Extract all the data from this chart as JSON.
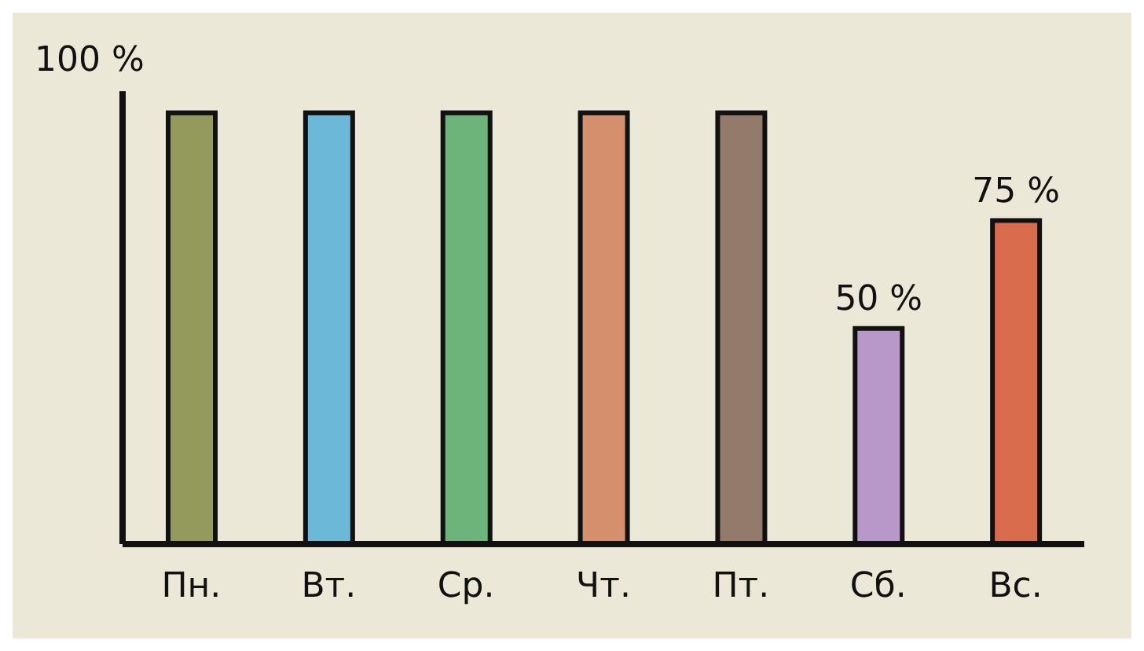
{
  "chart_data": {
    "type": "bar",
    "ylim": [
      0,
      105
    ],
    "categories": [
      "Пн.",
      "Вт.",
      "Ср.",
      "Чт.",
      "Пт.",
      "Сб.",
      "Вс."
    ],
    "values": [
      100,
      100,
      100,
      100,
      100,
      50,
      75
    ],
    "colors": [
      "#949a5c",
      "#6cb8d8",
      "#6cb47a",
      "#d4906c",
      "#947a6a",
      "#b898c8",
      "#d86c4c"
    ],
    "value_labels": [
      null,
      null,
      null,
      null,
      null,
      "50 %",
      "75 %"
    ],
    "annotations": [
      "100 %"
    ]
  }
}
